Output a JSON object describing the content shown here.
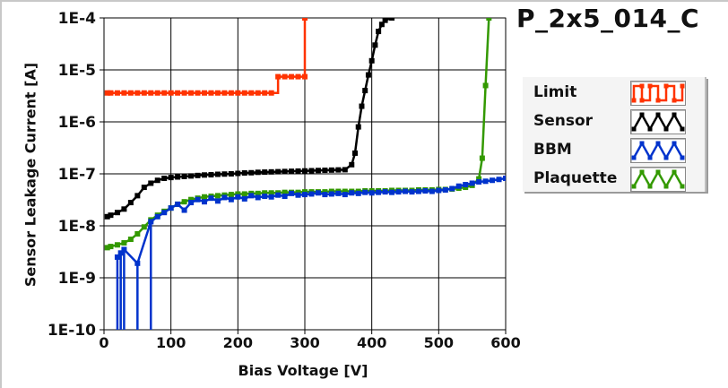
{
  "chart_data": {
    "type": "line",
    "title": "P_2x5_014_C",
    "xlabel": "Bias Voltage [V]",
    "ylabel": "Sensor Leakage Current [A]",
    "xlim": [
      0,
      600
    ],
    "ylim": [
      1e-10,
      0.0001
    ],
    "yscale": "log",
    "grid": true,
    "legend_position": "right",
    "x_ticks": [
      "0",
      "100",
      "200",
      "300",
      "400",
      "500",
      "600"
    ],
    "y_ticks": [
      "1E-10",
      "1E-9",
      "1E-8",
      "1E-7",
      "1E-6",
      "1E-5",
      "1E-4"
    ],
    "series": [
      {
        "name": "Limit",
        "color": "#ff3300",
        "x": [
          5,
          10,
          20,
          30,
          40,
          50,
          60,
          70,
          80,
          90,
          100,
          110,
          120,
          130,
          140,
          150,
          160,
          170,
          180,
          190,
          200,
          210,
          220,
          230,
          240,
          250,
          260,
          270,
          280,
          290,
          300,
          300
        ],
        "y": [
          3.6e-06,
          3.6e-06,
          3.6e-06,
          3.6e-06,
          3.6e-06,
          3.6e-06,
          3.6e-06,
          3.6e-06,
          3.6e-06,
          3.6e-06,
          3.6e-06,
          3.6e-06,
          3.6e-06,
          3.6e-06,
          3.6e-06,
          3.6e-06,
          3.6e-06,
          3.6e-06,
          3.6e-06,
          3.6e-06,
          3.6e-06,
          3.6e-06,
          3.6e-06,
          3.6e-06,
          3.6e-06,
          3.6e-06,
          7.4e-06,
          7.4e-06,
          7.4e-06,
          7.4e-06,
          7.4e-06,
          0.0001
        ]
      },
      {
        "name": "Sensor",
        "color": "#000000",
        "x": [
          5,
          10,
          20,
          30,
          40,
          50,
          60,
          70,
          80,
          90,
          100,
          110,
          120,
          130,
          140,
          150,
          160,
          170,
          180,
          190,
          200,
          210,
          220,
          230,
          240,
          250,
          260,
          270,
          280,
          290,
          300,
          310,
          320,
          330,
          340,
          350,
          360,
          370,
          375,
          380,
          385,
          390,
          395,
          400,
          405,
          410,
          415,
          420,
          430
        ],
        "y": [
          1.5e-08,
          1.6e-08,
          1.8e-08,
          2.1e-08,
          2.8e-08,
          3.8e-08,
          5.5e-08,
          6.6e-08,
          7.5e-08,
          8.2e-08,
          8.5e-08,
          8.7e-08,
          8.9e-08,
          9.1e-08,
          9.3e-08,
          9.5e-08,
          9.6e-08,
          9.8e-08,
          9.9e-08,
          1e-07,
          1.02e-07,
          1.04e-07,
          1.05e-07,
          1.07e-07,
          1.08e-07,
          1.09e-07,
          1.1e-07,
          1.11e-07,
          1.12e-07,
          1.13e-07,
          1.14e-07,
          1.15e-07,
          1.16e-07,
          1.17e-07,
          1.18e-07,
          1.19e-07,
          1.2e-07,
          1.5e-07,
          2.5e-07,
          8e-07,
          2e-06,
          4e-06,
          8e-06,
          1.5e-05,
          3e-05,
          5.5e-05,
          7.5e-05,
          9e-05,
          0.0001
        ]
      },
      {
        "name": "BBM",
        "color": "#0033cc",
        "x": [
          20,
          25,
          30,
          50,
          70,
          80,
          90,
          100,
          110,
          120,
          130,
          140,
          150,
          160,
          170,
          180,
          190,
          200,
          210,
          220,
          230,
          240,
          250,
          260,
          270,
          280,
          290,
          300,
          310,
          320,
          330,
          340,
          350,
          360,
          370,
          380,
          390,
          400,
          410,
          420,
          430,
          440,
          450,
          460,
          470,
          480,
          490,
          500,
          510,
          520,
          530,
          540,
          550,
          560,
          570,
          580,
          590,
          600
        ],
        "y": [
          2.5e-09,
          3e-09,
          3.5e-09,
          1.9e-09,
          1.2e-08,
          1.5e-08,
          1.8e-08,
          2.2e-08,
          2.6e-08,
          2e-08,
          2.8e-08,
          3.2e-08,
          2.9e-08,
          3.4e-08,
          3e-08,
          3.5e-08,
          3.2e-08,
          3.6e-08,
          3.3e-08,
          3.8e-08,
          3.5e-08,
          3.7e-08,
          3.6e-08,
          3.9e-08,
          3.7e-08,
          4.2e-08,
          3.9e-08,
          4e-08,
          4.1e-08,
          4.3e-08,
          4e-08,
          4.1e-08,
          4.2e-08,
          4e-08,
          4.3e-08,
          4.2e-08,
          4.4e-08,
          4.3e-08,
          4.4e-08,
          4.5e-08,
          4.4e-08,
          4.5e-08,
          4.6e-08,
          4.5e-08,
          4.6e-08,
          4.7e-08,
          4.6e-08,
          4.8e-08,
          4.9e-08,
          5.2e-08,
          5.8e-08,
          6.2e-08,
          6.6e-08,
          7e-08,
          7.2e-08,
          7.5e-08,
          7.8e-08,
          8.2e-08
        ]
      },
      {
        "name": "Plaquette",
        "color": "#339900",
        "x": [
          5,
          10,
          20,
          30,
          40,
          50,
          60,
          70,
          80,
          90,
          100,
          110,
          120,
          130,
          140,
          150,
          160,
          170,
          180,
          190,
          200,
          210,
          220,
          230,
          240,
          250,
          260,
          270,
          280,
          290,
          300,
          310,
          320,
          330,
          340,
          350,
          360,
          370,
          380,
          390,
          400,
          410,
          420,
          430,
          440,
          450,
          460,
          470,
          480,
          490,
          500,
          510,
          520,
          530,
          540,
          550,
          560,
          565,
          570,
          575
        ],
        "y": [
          3.8e-09,
          4e-09,
          4.3e-09,
          4.7e-09,
          5.5e-09,
          7e-09,
          9.5e-09,
          1.3e-08,
          1.6e-08,
          1.9e-08,
          2.2e-08,
          2.6e-08,
          2.9e-08,
          3.2e-08,
          3.4e-08,
          3.6e-08,
          3.7e-08,
          3.8e-08,
          3.9e-08,
          4e-08,
          4.1e-08,
          4.1e-08,
          4.2e-08,
          4.2e-08,
          4.3e-08,
          4.3e-08,
          4.3e-08,
          4.4e-08,
          4.4e-08,
          4.4e-08,
          4.5e-08,
          4.5e-08,
          4.5e-08,
          4.5e-08,
          4.6e-08,
          4.6e-08,
          4.6e-08,
          4.6e-08,
          4.6e-08,
          4.7e-08,
          4.7e-08,
          4.7e-08,
          4.7e-08,
          4.8e-08,
          4.8e-08,
          4.8e-08,
          4.8e-08,
          4.9e-08,
          4.9e-08,
          4.9e-08,
          5e-08,
          5e-08,
          5.1e-08,
          5.3e-08,
          5.5e-08,
          6e-08,
          8e-08,
          2e-07,
          5e-06,
          0.0001
        ]
      }
    ]
  },
  "legend": {
    "items": [
      {
        "label": "Limit",
        "color": "#ff3300"
      },
      {
        "label": "Sensor",
        "color": "#000000"
      },
      {
        "label": "BBM",
        "color": "#0033cc"
      },
      {
        "label": "Plaquette",
        "color": "#339900"
      }
    ]
  }
}
